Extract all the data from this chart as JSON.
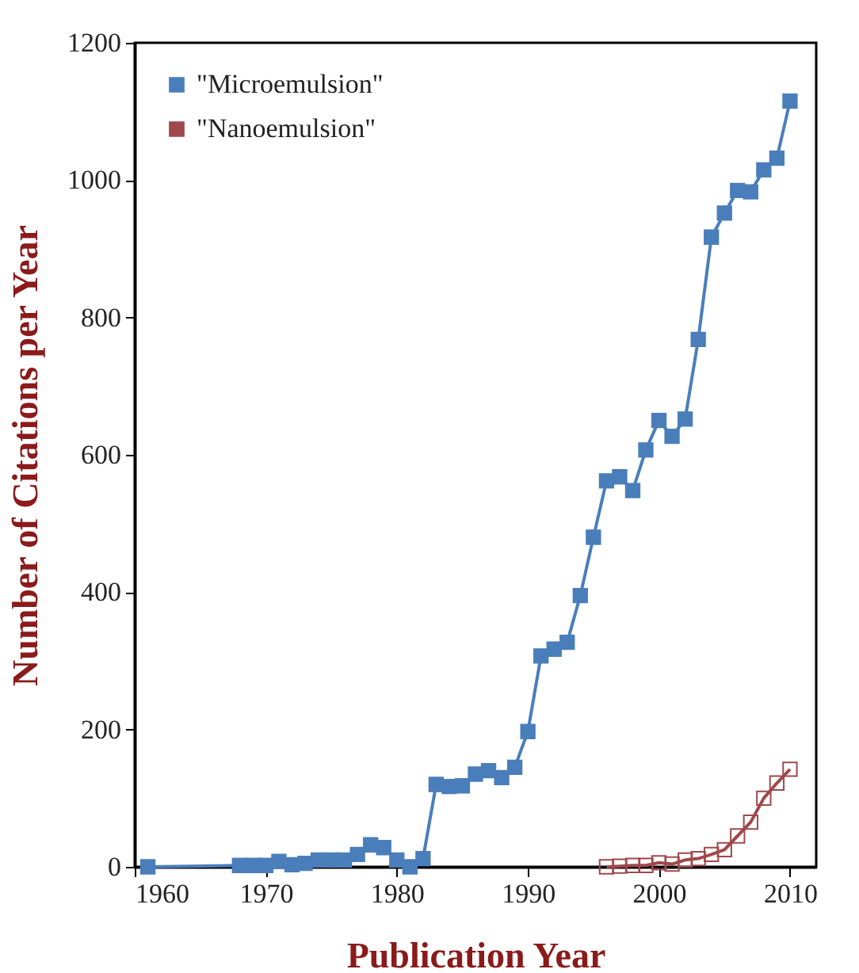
{
  "chart_data": {
    "type": "line",
    "xlabel": "Publication Year",
    "ylabel": "Number of Citations per Year",
    "marker": "square",
    "legend": "top left",
    "line_style": "solid",
    "grid": false,
    "xlim": [
      1960,
      2012
    ],
    "xticks": [
      1960,
      1970,
      1980,
      1990,
      2000,
      2010
    ],
    "ylim": [
      0,
      1200
    ],
    "yticks": [
      0,
      200,
      400,
      600,
      800,
      1000,
      1200
    ],
    "series": [
      {
        "name": "\"Microemulsion\"",
        "color": "#4a7ebb",
        "x": [
          1961,
          1968,
          1969,
          1970,
          1971,
          1972,
          1973,
          1974,
          1975,
          1976,
          1977,
          1978,
          1979,
          1980,
          1981,
          1982,
          1983,
          1984,
          1985,
          1986,
          1987,
          1988,
          1989,
          1990,
          1991,
          1992,
          1993,
          1994,
          1995,
          1996,
          1997,
          1998,
          1999,
          2000,
          2001,
          2002,
          2003,
          2004,
          2005,
          2006,
          2007,
          2008,
          2009,
          2010
        ],
        "values": [
          0,
          2,
          2,
          2,
          8,
          3,
          5,
          10,
          10,
          10,
          18,
          32,
          28,
          10,
          0,
          12,
          120,
          117,
          118,
          135,
          140,
          130,
          145,
          197,
          307,
          317,
          327,
          395,
          480,
          562,
          568,
          548,
          607,
          650,
          627,
          652,
          768,
          917,
          952,
          985,
          983,
          1015,
          1032,
          1115
        ]
      },
      {
        "name": "\"Nanoemulsion\"",
        "color": "#a0484b",
        "x": [
          1996,
          1997,
          1998,
          1999,
          2000,
          2001,
          2002,
          2003,
          2004,
          2005,
          2006,
          2007,
          2008,
          2009,
          2010
        ],
        "values": [
          0,
          1,
          2,
          2,
          6,
          4,
          10,
          12,
          18,
          25,
          45,
          65,
          100,
          122,
          142
        ]
      }
    ]
  }
}
